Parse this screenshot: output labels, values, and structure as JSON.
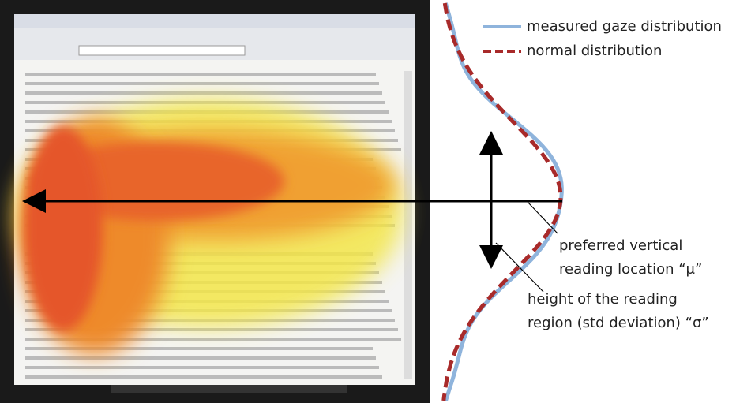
{
  "legend": [
    {
      "label": "measured gaze distribution"
    },
    {
      "label": "normal distribution"
    }
  ],
  "annotations": [
    {
      "lines": [
        "preferred vertical",
        "reading location “μ”"
      ]
    },
    {
      "lines": [
        "height of the reading",
        "region (std deviation) “σ”"
      ]
    }
  ]
}
